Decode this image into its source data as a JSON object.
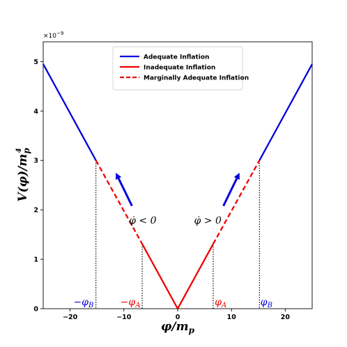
{
  "chart_data": {
    "type": "line",
    "xlabel": "φ/m",
    "xlabel_sub": "p",
    "ylabel": "V(φ)/m",
    "ylabel_sub": "p",
    "ylabel_sup": "4",
    "y_multiplier": "×10",
    "y_multiplier_exp": "−9",
    "xlim": [
      -25,
      25
    ],
    "ylim": [
      0,
      5.4
    ],
    "x_ticks": [
      -20,
      -10,
      0,
      10,
      20
    ],
    "x_tick_labels": [
      "−20",
      "−10",
      "0",
      "10",
      "20"
    ],
    "y_ticks": [
      0,
      1,
      2,
      3,
      4,
      5
    ],
    "y_tick_labels": [
      "0",
      "1",
      "2",
      "3",
      "4",
      "5"
    ],
    "legend_position": "top-center",
    "colors": {
      "adequate": "#0000dd",
      "inadequate": "#ee0000",
      "arrow": "#0000dd",
      "guide": "#000000"
    },
    "series": [
      {
        "name": "Adequate Inflation",
        "style": "solid",
        "color": "#0000dd",
        "segments": [
          [
            [
              -25,
              4.95
            ],
            [
              -15.2,
              3.0
            ]
          ],
          [
            [
              15.2,
              3.0
            ],
            [
              25,
              4.95
            ]
          ]
        ]
      },
      {
        "name": "Inadequate Inflation",
        "style": "solid",
        "color": "#ee0000",
        "segments": [
          [
            [
              -6.6,
              1.31
            ],
            [
              0,
              0.0
            ],
            [
              6.6,
              1.31
            ]
          ]
        ]
      },
      {
        "name": "Marginally Adequate Inflation",
        "style": "dashed",
        "color": "#ee0000",
        "segments": [
          [
            [
              -15.2,
              3.0
            ],
            [
              -6.6,
              1.31
            ]
          ],
          [
            [
              6.6,
              1.31
            ],
            [
              15.2,
              3.0
            ]
          ]
        ]
      }
    ],
    "guides": [
      {
        "x": -15.2,
        "y": 3.0
      },
      {
        "x": -6.6,
        "y": 1.31
      },
      {
        "x": 6.6,
        "y": 1.31
      },
      {
        "x": 15.2,
        "y": 3.0
      }
    ],
    "arrows": [
      {
        "from": [
          -8.5,
          2.08
        ],
        "to": [
          -11.5,
          2.75
        ]
      },
      {
        "from": [
          8.5,
          2.08
        ],
        "to": [
          11.5,
          2.75
        ]
      }
    ],
    "annotations": [
      {
        "id": "neg-phi-b",
        "text": "−φ",
        "sub": "B",
        "x": -17.5,
        "y": 0.07,
        "color": "#0000dd"
      },
      {
        "id": "neg-phi-a",
        "text": "−φ",
        "sub": "A",
        "x": -8.8,
        "y": 0.07,
        "color": "#ee0000"
      },
      {
        "id": "phi-a",
        "text": "φ",
        "sub": "A",
        "x": 8.0,
        "y": 0.07,
        "color": "#ee0000"
      },
      {
        "id": "phi-b",
        "text": "φ",
        "sub": "B",
        "x": 16.5,
        "y": 0.07,
        "color": "#0000dd"
      },
      {
        "id": "phidot-lt",
        "text": "φ̇ < 0",
        "x": -6.5,
        "y": 1.72,
        "color": "#000000"
      },
      {
        "id": "phidot-gt",
        "text": "φ̇ > 0",
        "x": 5.6,
        "y": 1.72,
        "color": "#000000"
      }
    ]
  }
}
